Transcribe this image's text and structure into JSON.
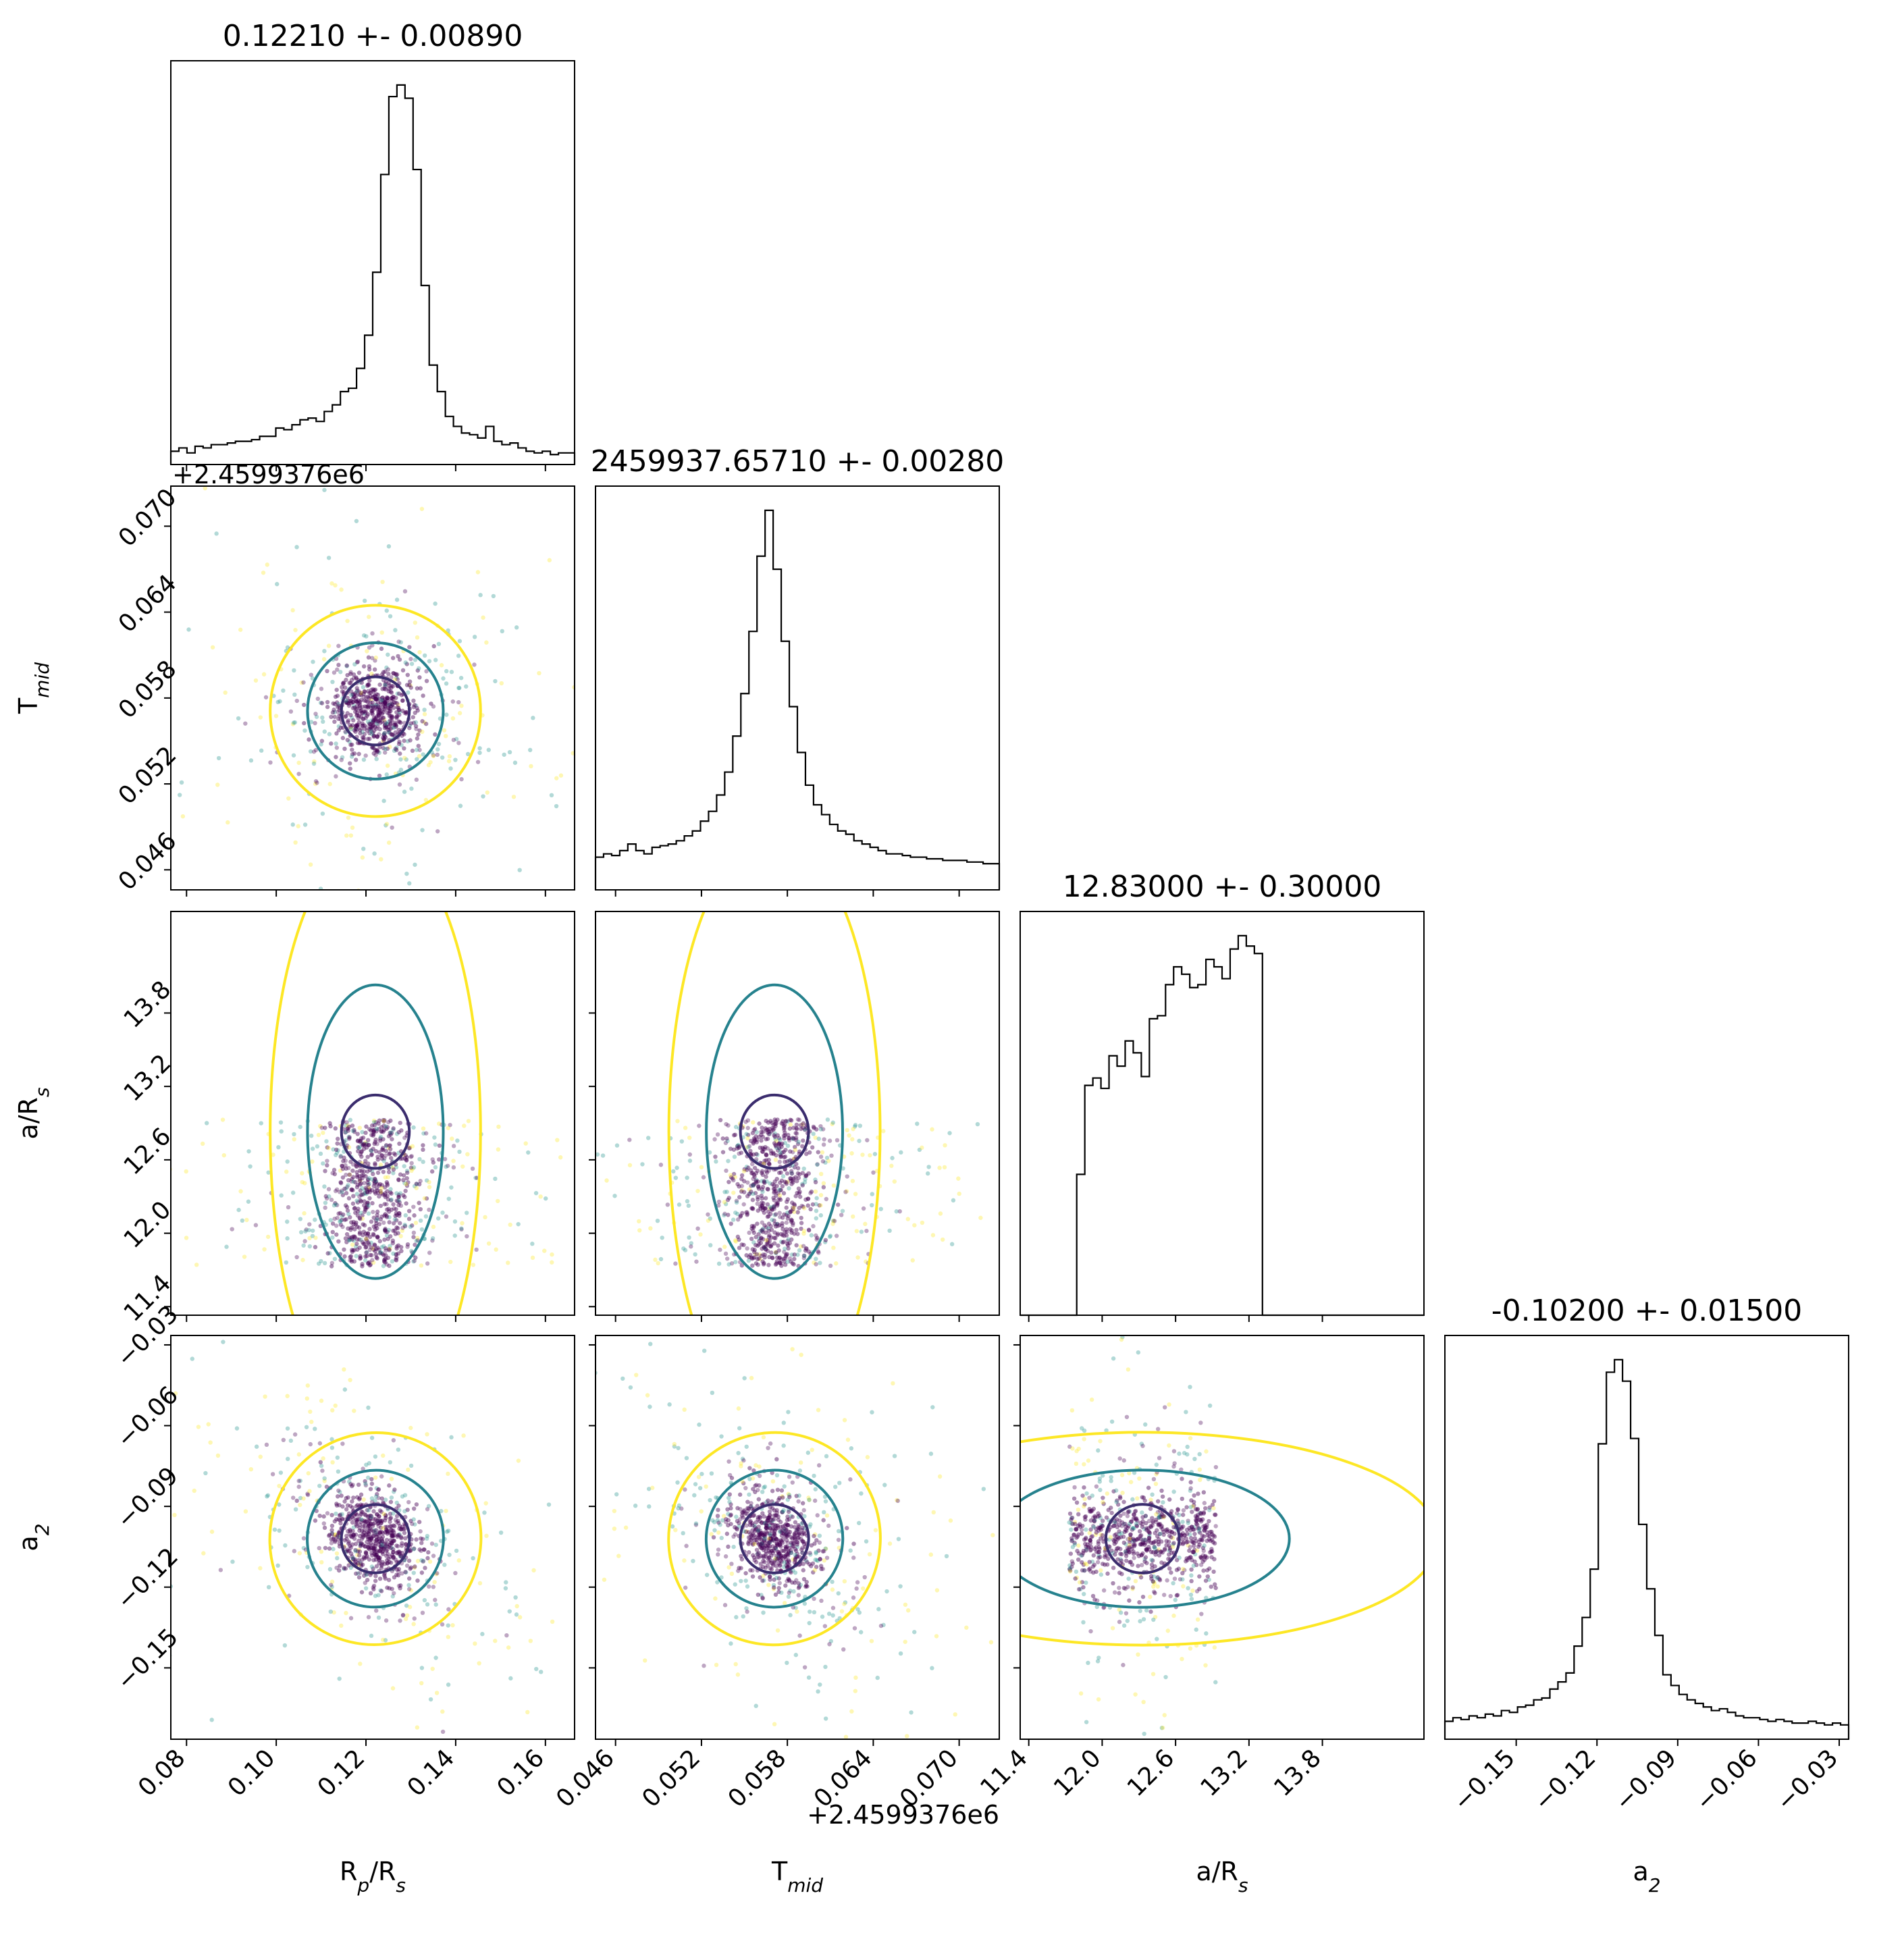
{
  "chart_data": {
    "type": "corner",
    "colormap": [
      "#fde725",
      "#21918c",
      "#440154"
    ],
    "parameters": [
      {
        "name": "Rp/Rs",
        "label_main": "R",
        "label_sub": "p",
        "label_tail": "/R",
        "label_sub2": "s",
        "title": "0.12210 +- 0.00890",
        "range": [
          0.0765,
          0.1665
        ],
        "ticks": [
          0.08,
          0.1,
          0.12,
          0.14,
          0.16
        ],
        "tick_labels": [
          "0.08",
          "0.10",
          "0.12",
          "0.14",
          "0.16"
        ],
        "median": 0.1221,
        "sigma": 0.0089,
        "shape": "peak"
      },
      {
        "name": "T_mid",
        "label_main": "T",
        "label_sub": "mid",
        "label_tail": "",
        "label_sub2": "",
        "title": "2459937.65710 +- 0.00280",
        "offset_text": "+2.4599376e6",
        "range": [
          0.0446,
          0.0728
        ],
        "ticks": [
          0.046,
          0.052,
          0.058,
          0.064,
          0.07
        ],
        "tick_labels": [
          "0.046",
          "0.052",
          "0.058",
          "0.064",
          "0.070"
        ],
        "median": 0.0571,
        "sigma": 0.0028,
        "shape": "peak"
      },
      {
        "name": "a/Rs",
        "label_main": "a/R",
        "label_sub": "s",
        "label_tail": "",
        "label_sub2": "",
        "title": "12.83000 +- 0.30000",
        "range": [
          11.33,
          14.63
        ],
        "ticks": [
          11.4,
          12.0,
          12.6,
          13.2,
          13.8
        ],
        "tick_labels": [
          "11.4",
          "12.0",
          "12.6",
          "13.2",
          "13.8"
        ],
        "median": 12.83,
        "sigma": 0.3,
        "support": [
          11.73,
          12.93
        ],
        "shape": "truncated"
      },
      {
        "name": "a2",
        "label_main": "a",
        "label_sub": "2",
        "label_tail": "",
        "label_sub2": "",
        "title": "-0.10200 +- 0.01500",
        "range": [
          -0.1765,
          -0.0265
        ],
        "ticks": [
          -0.15,
          -0.12,
          -0.09,
          -0.06,
          -0.03
        ],
        "tick_labels": [
          "−0.15",
          "−0.12",
          "−0.09",
          "−0.06",
          "−0.03"
        ],
        "median": -0.102,
        "sigma": 0.015,
        "shape": "peak"
      }
    ],
    "histograms": [
      {
        "param": "Rp/Rs",
        "bin_edges_start": 0.0765,
        "bin_width": 0.0018,
        "counts": [
          8,
          10,
          7,
          11,
          10,
          12,
          12,
          13,
          14,
          14,
          15,
          17,
          17,
          22,
          21,
          24,
          27,
          28,
          26,
          32,
          36,
          44,
          46,
          58,
          78,
          116,
          175,
          222,
          229,
          221,
          178,
          108,
          60,
          44,
          29,
          23,
          19,
          18,
          16,
          23,
          14,
          12,
          13,
          10,
          8,
          7,
          8,
          6,
          7,
          7
        ]
      },
      {
        "param": "T_mid",
        "bin_edges_start": 0.0446,
        "bin_width": 0.000564,
        "counts": [
          20,
          22,
          21,
          24,
          28,
          24,
          22,
          26,
          27,
          28,
          30,
          33,
          36,
          42,
          48,
          58,
          72,
          94,
          120,
          158,
          204,
          232,
          196,
          152,
          112,
          84,
          64,
          52,
          46,
          40,
          36,
          34,
          30,
          28,
          26,
          24,
          22,
          22,
          21,
          20,
          20,
          19,
          19,
          18,
          18,
          18,
          17,
          17,
          16,
          16
        ]
      },
      {
        "param": "a/Rs",
        "bin_edges_start": 11.33,
        "bin_width": 0.066,
        "counts": [
          0,
          0,
          0,
          0,
          0,
          0,
          0,
          95,
          155,
          160,
          153,
          175,
          168,
          185,
          177,
          161,
          200,
          202,
          223,
          235,
          230,
          221,
          223,
          240,
          235,
          227,
          247,
          256,
          249,
          244,
          0,
          0,
          0,
          0,
          0,
          0,
          0,
          0,
          0,
          0,
          0,
          0,
          0,
          0,
          0,
          0,
          0,
          0,
          0,
          0
        ]
      },
      {
        "param": "a2",
        "bin_edges_start": -0.1765,
        "bin_width": 0.003,
        "counts": [
          10,
          12,
          11,
          13,
          12,
          14,
          13,
          16,
          15,
          18,
          19,
          22,
          23,
          28,
          32,
          37,
          52,
          68,
          95,
          165,
          205,
          212,
          200,
          168,
          120,
          84,
          58,
          36,
          30,
          25,
          22,
          20,
          18,
          16,
          17,
          15,
          13,
          12,
          12,
          11,
          10,
          11,
          10,
          9,
          9,
          10,
          9,
          8,
          9,
          8
        ]
      }
    ],
    "contour_levels": [
      {
        "level": "inner",
        "color": "#3b2d6e",
        "sigma_scale": 1.0
      },
      {
        "level": "middle",
        "color": "#26828e",
        "sigma_scale": 2.0
      },
      {
        "level": "outer",
        "color": "#fde725",
        "sigma_scale": 3.1
      }
    ],
    "scatter_points_per_panel": 900,
    "grid": false,
    "legend": "none"
  }
}
